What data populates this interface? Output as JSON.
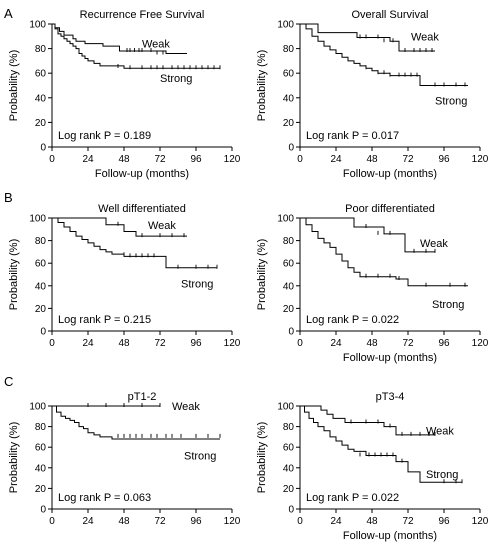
{
  "panel_letters": [
    "A",
    "B",
    "C"
  ],
  "chart_data": [
    {
      "type": "line",
      "panel": "A",
      "title": "Recurrence Free Survival",
      "xlabel": "Follow-up (months)",
      "ylabel": "Probability (%)",
      "xlim": [
        0,
        120
      ],
      "ylim": [
        0,
        100
      ],
      "xticks": [
        0,
        24,
        48,
        72,
        96,
        120
      ],
      "yticks": [
        0,
        20,
        40,
        60,
        80,
        100
      ],
      "annotation": "Log rank P = 0.189",
      "series": [
        {
          "name": "Weak",
          "label_at": [
            60,
            84
          ],
          "x": [
            0,
            2,
            5,
            8,
            10,
            14,
            16,
            20,
            22,
            26,
            30,
            34,
            40,
            45,
            56,
            76,
            90
          ],
          "y": [
            100,
            97,
            94,
            91,
            91,
            88,
            86,
            86,
            84,
            84,
            84,
            82,
            82,
            78,
            78,
            76,
            76
          ],
          "censored": [
            [
              50,
              78
            ],
            [
              52,
              78
            ],
            [
              55,
              78
            ],
            [
              58,
              78
            ],
            [
              60,
              78
            ],
            [
              66,
              78
            ],
            [
              70,
              76
            ],
            [
              74,
              76
            ]
          ]
        },
        {
          "name": "Strong",
          "label_at": [
            72,
            56
          ],
          "x": [
            0,
            2,
            4,
            6,
            8,
            10,
            12,
            14,
            16,
            18,
            20,
            22,
            24,
            28,
            32,
            40,
            48,
            112
          ],
          "y": [
            100,
            96,
            92,
            90,
            88,
            86,
            84,
            82,
            80,
            76,
            74,
            72,
            70,
            68,
            66,
            66,
            64,
            64
          ],
          "censored": [
            [
              44,
              65
            ],
            [
              52,
              64
            ],
            [
              60,
              64
            ],
            [
              66,
              64
            ],
            [
              70,
              64
            ],
            [
              74,
              64
            ],
            [
              80,
              64
            ],
            [
              84,
              64
            ],
            [
              88,
              64
            ],
            [
              92,
              64
            ],
            [
              96,
              64
            ],
            [
              100,
              64
            ],
            [
              104,
              64
            ],
            [
              108,
              64
            ],
            [
              112,
              64
            ]
          ]
        }
      ]
    },
    {
      "type": "line",
      "panel": "A",
      "title": "Overall Survival",
      "xlabel": "Follow-up (months)",
      "ylabel": "Probability (%)",
      "xlim": [
        0,
        120
      ],
      "ylim": [
        0,
        100
      ],
      "xticks": [
        0,
        24,
        48,
        72,
        96,
        120
      ],
      "yticks": [
        0,
        20,
        40,
        60,
        80,
        100
      ],
      "annotation": "Log rank P = 0.017",
      "series": [
        {
          "name": "Weak",
          "label_at": [
            74,
            90
          ],
          "x": [
            0,
            12,
            24,
            34,
            38,
            48,
            60,
            66,
            90
          ],
          "y": [
            100,
            93,
            93,
            93,
            89,
            89,
            86,
            78,
            78
          ],
          "censored": [
            [
              40,
              89
            ],
            [
              44,
              89
            ],
            [
              52,
              89
            ],
            [
              56,
              86
            ],
            [
              62,
              86
            ],
            [
              70,
              78
            ],
            [
              76,
              78
            ],
            [
              80,
              78
            ],
            [
              84,
              78
            ],
            [
              88,
              78
            ]
          ]
        },
        {
          "name": "Strong",
          "label_at": [
            90,
            38
          ],
          "x": [
            0,
            4,
            8,
            12,
            16,
            20,
            24,
            28,
            32,
            36,
            40,
            44,
            48,
            52,
            56,
            60,
            64,
            80,
            112
          ],
          "y": [
            100,
            96,
            90,
            86,
            82,
            79,
            76,
            73,
            70,
            68,
            66,
            64,
            62,
            60,
            60,
            58,
            58,
            50,
            50
          ],
          "censored": [
            [
              44,
              64
            ],
            [
              52,
              60
            ],
            [
              56,
              60
            ],
            [
              60,
              58
            ],
            [
              66,
              58
            ],
            [
              70,
              58
            ],
            [
              74,
              58
            ],
            [
              78,
              58
            ],
            [
              90,
              50
            ],
            [
              96,
              50
            ],
            [
              104,
              50
            ],
            [
              110,
              50
            ]
          ]
        }
      ]
    },
    {
      "type": "line",
      "panel": "B",
      "title": "Well differentiated",
      "xlabel": "",
      "ylabel": "Probability (%)",
      "xlim": [
        0,
        120
      ],
      "ylim": [
        0,
        100
      ],
      "xticks": [
        0,
        24,
        48,
        72,
        96,
        120
      ],
      "yticks": [
        0,
        20,
        40,
        60,
        80,
        100
      ],
      "annotation": "Log rank P = 0.215",
      "series": [
        {
          "name": "Weak",
          "label_at": [
            64,
            94
          ],
          "x": [
            0,
            30,
            36,
            42,
            48,
            56,
            90
          ],
          "y": [
            100,
            100,
            94,
            94,
            88,
            84,
            84
          ],
          "censored": [
            [
              44,
              94
            ],
            [
              60,
              84
            ],
            [
              72,
              84
            ],
            [
              80,
              84
            ],
            [
              88,
              84
            ]
          ]
        },
        {
          "name": "Strong",
          "label_at": [
            86,
            42
          ],
          "x": [
            0,
            4,
            8,
            12,
            16,
            20,
            24,
            28,
            32,
            36,
            40,
            44,
            48,
            56,
            76,
            110
          ],
          "y": [
            100,
            96,
            92,
            88,
            84,
            81,
            78,
            75,
            72,
            70,
            68,
            68,
            66,
            66,
            56,
            56
          ],
          "censored": [
            [
              48,
              67
            ],
            [
              52,
              66
            ],
            [
              56,
              66
            ],
            [
              60,
              66
            ],
            [
              64,
              66
            ],
            [
              68,
              66
            ],
            [
              84,
              56
            ],
            [
              96,
              56
            ],
            [
              104,
              56
            ],
            [
              110,
              56
            ]
          ]
        }
      ]
    },
    {
      "type": "line",
      "panel": "B",
      "title": "Poor differentiated",
      "xlabel": "Follow-up (months)",
      "ylabel": "Probability (%)",
      "xlim": [
        0,
        120
      ],
      "ylim": [
        0,
        100
      ],
      "xticks": [
        0,
        24,
        48,
        72,
        96,
        120
      ],
      "yticks": [
        0,
        20,
        40,
        60,
        80,
        100
      ],
      "annotation": "Log rank P = 0.022",
      "series": [
        {
          "name": "Weak",
          "label_at": [
            80,
            78
          ],
          "x": [
            0,
            32,
            36,
            48,
            56,
            64,
            70,
            90
          ],
          "y": [
            100,
            100,
            92,
            92,
            86,
            86,
            70,
            70
          ],
          "censored": [
            [
              44,
              92
            ],
            [
              52,
              86
            ],
            [
              60,
              86
            ],
            [
              76,
              70
            ],
            [
              84,
              70
            ],
            [
              90,
              70
            ]
          ]
        },
        {
          "name": "Strong",
          "label_at": [
            88,
            24
          ],
          "x": [
            0,
            4,
            8,
            12,
            16,
            20,
            24,
            28,
            32,
            36,
            40,
            48,
            56,
            64,
            72,
            112
          ],
          "y": [
            100,
            94,
            88,
            82,
            78,
            74,
            68,
            62,
            56,
            52,
            48,
            48,
            48,
            46,
            40,
            40
          ],
          "censored": [
            [
              44,
              48
            ],
            [
              52,
              48
            ],
            [
              60,
              48
            ],
            [
              66,
              46
            ],
            [
              84,
              40
            ],
            [
              100,
              40
            ],
            [
              110,
              40
            ]
          ]
        }
      ]
    },
    {
      "type": "line",
      "panel": "C",
      "title": "pT1-2",
      "xlabel": "",
      "ylabel": "Probability (%)",
      "xlim": [
        0,
        120
      ],
      "ylim": [
        0,
        100
      ],
      "xticks": [
        0,
        24,
        48,
        72,
        96,
        120
      ],
      "yticks": [
        0,
        20,
        40,
        60,
        80,
        100
      ],
      "annotation": "Log rank P = 0.063",
      "series": [
        {
          "name": "Weak",
          "label_at": [
            80,
            100
          ],
          "x": [
            0,
            72
          ],
          "y": [
            100,
            100
          ],
          "censored": [
            [
              24,
              100
            ],
            [
              36,
              100
            ],
            [
              48,
              100
            ],
            [
              60,
              100
            ],
            [
              72,
              100
            ]
          ]
        },
        {
          "name": "Strong",
          "label_at": [
            88,
            52
          ],
          "x": [
            0,
            3,
            6,
            9,
            12,
            15,
            18,
            21,
            24,
            28,
            32,
            36,
            40,
            112
          ],
          "y": [
            100,
            94,
            90,
            88,
            86,
            84,
            80,
            78,
            74,
            72,
            70,
            70,
            68,
            68
          ],
          "censored": [
            [
              44,
              70
            ],
            [
              48,
              70
            ],
            [
              52,
              70
            ],
            [
              56,
              70
            ],
            [
              60,
              70
            ],
            [
              66,
              70
            ],
            [
              70,
              70
            ],
            [
              76,
              70
            ],
            [
              80,
              70
            ],
            [
              86,
              70
            ],
            [
              96,
              70
            ],
            [
              104,
              70
            ],
            [
              112,
              70
            ]
          ]
        }
      ]
    },
    {
      "type": "line",
      "panel": "C",
      "title": "pT3-4",
      "xlabel": "Follow-up (months)",
      "ylabel": "Probability (%)",
      "xlim": [
        0,
        120
      ],
      "ylim": [
        0,
        100
      ],
      "xticks": [
        0,
        24,
        48,
        72,
        96,
        120
      ],
      "yticks": [
        0,
        20,
        40,
        60,
        80,
        100
      ],
      "annotation": "Log rank P = 0.022",
      "series": [
        {
          "name": "Weak",
          "label_at": [
            84,
            76
          ],
          "x": [
            0,
            10,
            14,
            18,
            22,
            30,
            40,
            48,
            56,
            64,
            90
          ],
          "y": [
            100,
            100,
            96,
            92,
            88,
            84,
            84,
            84,
            80,
            72,
            72
          ],
          "censored": [
            [
              34,
              84
            ],
            [
              44,
              84
            ],
            [
              52,
              84
            ],
            [
              60,
              80
            ],
            [
              68,
              72
            ],
            [
              74,
              72
            ],
            [
              80,
              72
            ],
            [
              86,
              72
            ],
            [
              90,
              72
            ]
          ]
        },
        {
          "name": "Strong",
          "label_at": [
            84,
            34
          ],
          "x": [
            0,
            3,
            6,
            9,
            12,
            16,
            20,
            24,
            28,
            32,
            36,
            44,
            56,
            64,
            72,
            80,
            108
          ],
          "y": [
            100,
            94,
            88,
            84,
            80,
            76,
            70,
            66,
            62,
            58,
            56,
            52,
            52,
            46,
            36,
            26,
            26
          ],
          "censored": [
            [
              40,
              52
            ],
            [
              46,
              52
            ],
            [
              50,
              52
            ],
            [
              54,
              52
            ],
            [
              58,
              52
            ],
            [
              62,
              52
            ],
            [
              68,
              46
            ],
            [
              96,
              26
            ],
            [
              104,
              26
            ],
            [
              108,
              26
            ]
          ]
        }
      ]
    }
  ]
}
